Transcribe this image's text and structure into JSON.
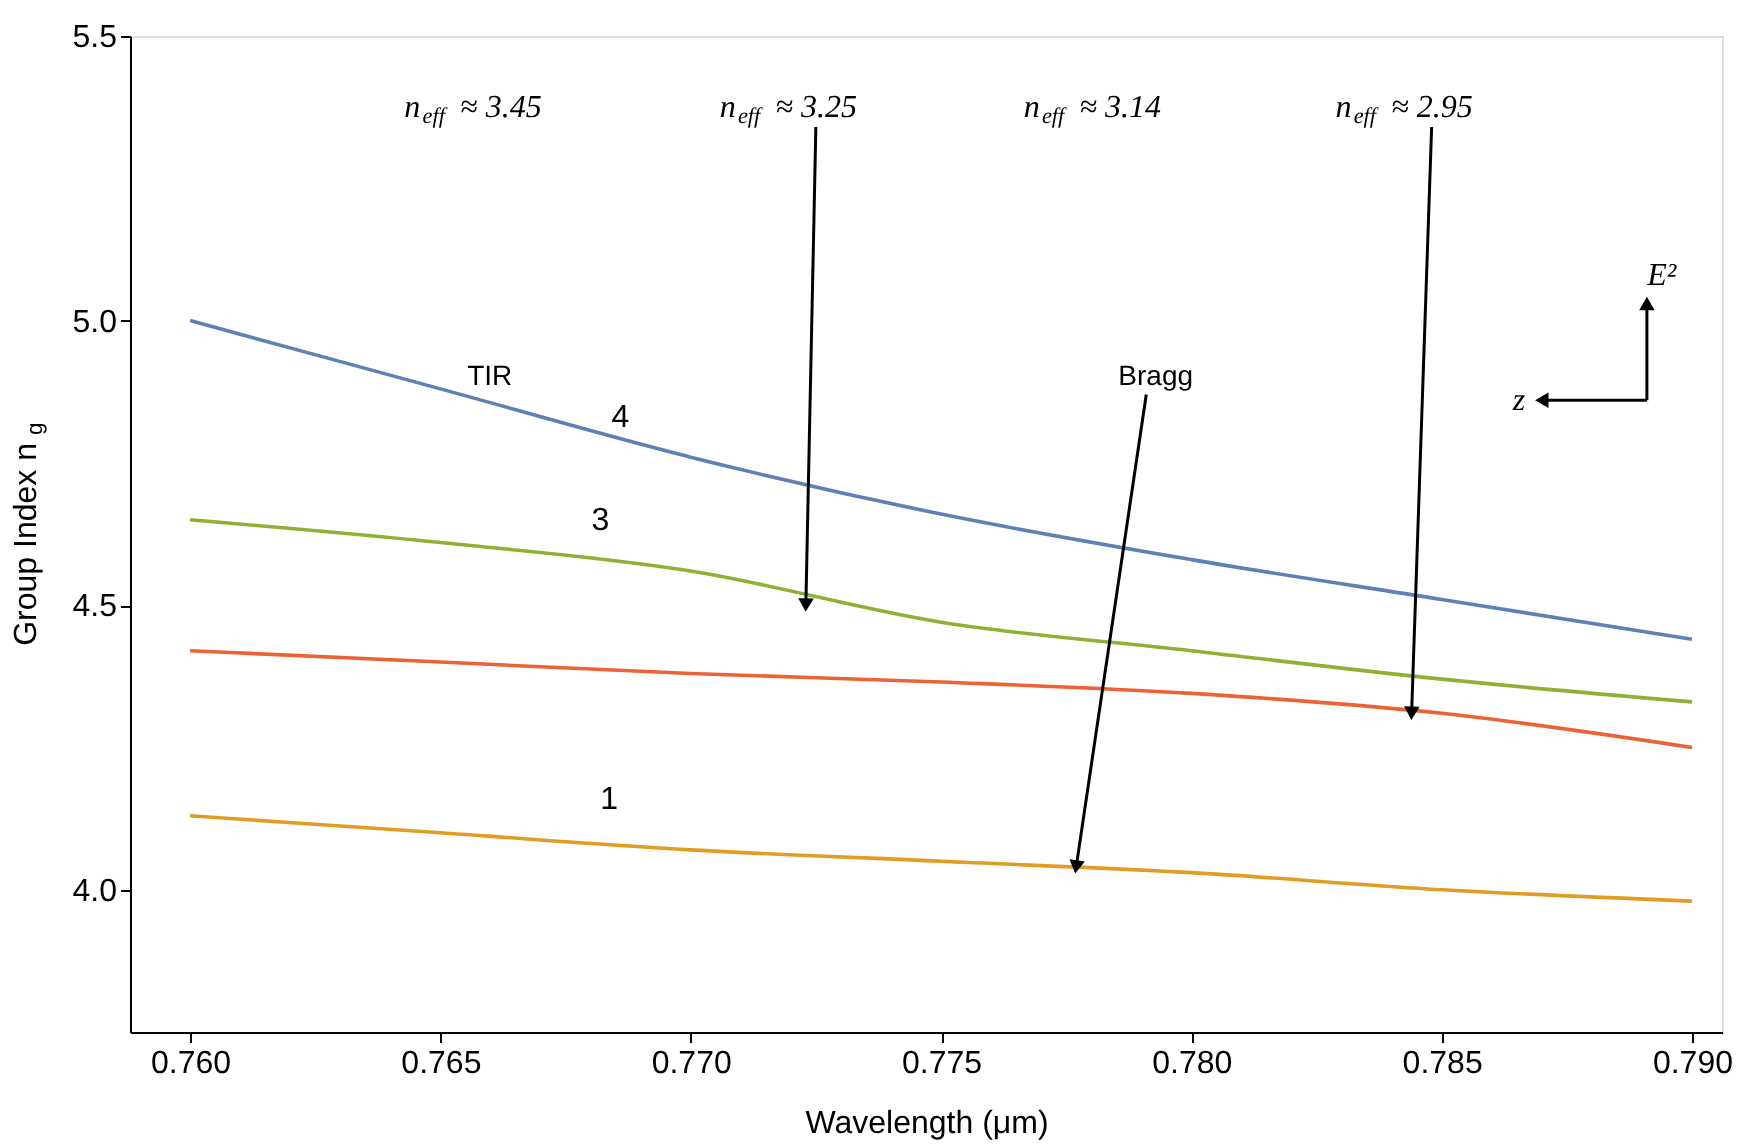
{
  "chart_data": {
    "type": "line",
    "xlabel": "Wavelength (μm)",
    "ylabel": "Group Index n$_{g}$",
    "x": [
      0.76,
      0.765,
      0.77,
      0.775,
      0.78,
      0.785,
      0.79
    ],
    "series": [
      {
        "color": "#5e81b5",
        "values": [
          5.0,
          4.88,
          4.76,
          4.66,
          4.58,
          4.51,
          4.44
        ]
      },
      {
        "color": "#8fb032",
        "values": [
          4.65,
          4.61,
          4.56,
          4.47,
          4.42,
          4.37,
          4.33
        ]
      },
      {
        "color": "#eb6235",
        "values": [
          4.42,
          4.4,
          4.38,
          4.365,
          4.345,
          4.31,
          4.25
        ]
      },
      {
        "color": "#e19c24",
        "values": [
          4.13,
          4.1,
          4.07,
          4.05,
          4.03,
          4.0,
          3.98
        ]
      }
    ],
    "xlim": [
      0.7588,
      0.7906
    ],
    "ylim": [
      3.75,
      5.5
    ],
    "xticks": [
      {
        "value": 0.76,
        "label": "0.760"
      },
      {
        "value": 0.765,
        "label": "0.765"
      },
      {
        "value": 0.77,
        "label": "0.770"
      },
      {
        "value": 0.775,
        "label": "0.775"
      },
      {
        "value": 0.78,
        "label": "0.780"
      },
      {
        "value": 0.785,
        "label": "0.785"
      },
      {
        "value": 0.79,
        "label": "0.790"
      }
    ],
    "yticks": [
      {
        "value": 4.0,
        "label": "4.0"
      },
      {
        "value": 4.5,
        "label": "4.5"
      },
      {
        "value": 5.0,
        "label": "5.0"
      },
      {
        "value": 5.5,
        "label": "5.5"
      }
    ],
    "grid": false,
    "marker": "none",
    "line_style": "solid",
    "annotations": [
      "4",
      "3",
      "1",
      "n$_{eff}$ ≈ 3.45",
      {
        "text": "n$_{eff}$ ≈ 3.25",
        "x": 0.7723,
        "y": 4.5
      },
      "n$_{eff}$ ≈ 3.14",
      {
        "text": "n$_{eff}$ ≈ 2.95",
        "x": 0.7844,
        "y": 4.31
      },
      "TIR",
      {
        "text": "Bragg",
        "x": 0.7777,
        "y": 4.04
      },
      "E²",
      "z"
    ]
  }
}
